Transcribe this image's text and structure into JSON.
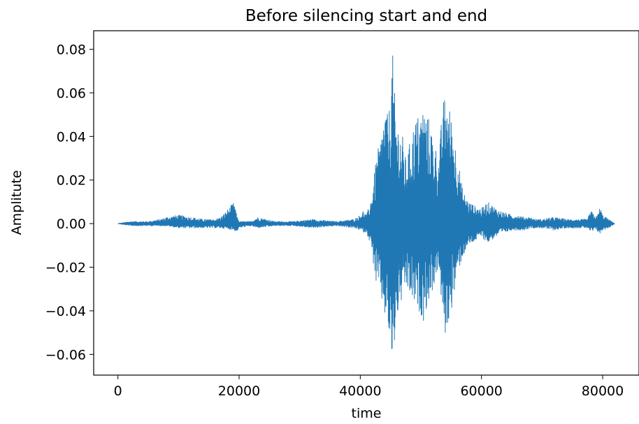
{
  "chart_data": {
    "type": "line",
    "title": "Before silencing start and end",
    "xlabel": "time",
    "ylabel": "Amplitute",
    "xlim": [
      -4000,
      86000
    ],
    "ylim": [
      -0.0695,
      0.0885
    ],
    "x_ticks": [
      0,
      20000,
      40000,
      60000,
      80000
    ],
    "x_tick_labels": [
      "0",
      "20000",
      "40000",
      "60000",
      "80000"
    ],
    "y_ticks": [
      -0.06,
      -0.04,
      -0.02,
      0.0,
      0.02,
      0.04,
      0.06,
      0.08
    ],
    "y_tick_labels": [
      "−0.06",
      "−0.04",
      "−0.02",
      "0.00",
      "0.02",
      "0.04",
      "0.06",
      "0.08"
    ],
    "grid": false,
    "legend": "none",
    "series": [
      {
        "color": "#1f77b4",
        "envelope": {
          "x": [
            0,
            2000,
            5000,
            7000,
            8000,
            10000,
            12000,
            14000,
            16000,
            17000,
            19200,
            19600,
            20000,
            22000,
            23000,
            26000,
            29000,
            32000,
            36000,
            39000,
            40000,
            40500,
            41000,
            41500,
            42000,
            42600,
            43000,
            43400,
            43800,
            44200,
            44600,
            45000,
            45300,
            45600,
            46000,
            46400,
            47000,
            47500,
            48000,
            48500,
            49000,
            49500,
            50000,
            50500,
            51000,
            51500,
            52000,
            52500,
            53000,
            53400,
            53800,
            54200,
            54600,
            55000,
            55400,
            55800,
            56200,
            56600,
            57000,
            57500,
            58000,
            59000,
            60000,
            61000,
            62000,
            63000,
            64000,
            65000,
            66000,
            67000,
            68000,
            69000,
            70000,
            72000,
            74000,
            76000,
            77500,
            78000,
            79000,
            79600,
            80000,
            81000,
            82000
          ],
          "upper": [
            0.0,
            0.001,
            0.001,
            0.002,
            0.003,
            0.004,
            0.003,
            0.002,
            0.002,
            0.003,
            0.01,
            0.004,
            0.001,
            0.001,
            0.003,
            0.001,
            0.001,
            0.002,
            0.001,
            0.002,
            0.004,
            0.006,
            0.004,
            0.008,
            0.015,
            0.03,
            0.035,
            0.04,
            0.05,
            0.055,
            0.048,
            0.06,
            0.081,
            0.062,
            0.05,
            0.045,
            0.04,
            0.03,
            0.035,
            0.042,
            0.048,
            0.05,
            0.052,
            0.055,
            0.05,
            0.048,
            0.04,
            0.035,
            0.03,
            0.048,
            0.058,
            0.06,
            0.055,
            0.05,
            0.044,
            0.035,
            0.03,
            0.02,
            0.015,
            0.012,
            0.01,
            0.008,
            0.007,
            0.01,
            0.008,
            0.006,
            0.005,
            0.004,
            0.004,
            0.003,
            0.003,
            0.002,
            0.002,
            0.003,
            0.002,
            0.002,
            0.002,
            0.006,
            0.003,
            0.008,
            0.004,
            0.002,
            0.0
          ],
          "lower": [
            0.0,
            -0.001,
            -0.001,
            -0.001,
            -0.001,
            -0.002,
            -0.002,
            -0.002,
            -0.002,
            -0.002,
            -0.003,
            -0.004,
            -0.002,
            -0.001,
            -0.002,
            -0.001,
            -0.001,
            -0.002,
            -0.001,
            -0.002,
            -0.003,
            -0.004,
            -0.004,
            -0.008,
            -0.015,
            -0.028,
            -0.03,
            -0.035,
            -0.04,
            -0.045,
            -0.05,
            -0.06,
            -0.068,
            -0.058,
            -0.045,
            -0.04,
            -0.035,
            -0.03,
            -0.032,
            -0.036,
            -0.038,
            -0.04,
            -0.042,
            -0.045,
            -0.038,
            -0.035,
            -0.03,
            -0.025,
            -0.02,
            -0.04,
            -0.05,
            -0.053,
            -0.045,
            -0.04,
            -0.035,
            -0.028,
            -0.022,
            -0.018,
            -0.015,
            -0.012,
            -0.01,
            -0.008,
            -0.006,
            -0.009,
            -0.007,
            -0.005,
            -0.004,
            -0.003,
            -0.003,
            -0.003,
            -0.002,
            -0.002,
            -0.002,
            -0.003,
            -0.002,
            -0.002,
            -0.002,
            -0.004,
            -0.003,
            -0.005,
            -0.003,
            -0.002,
            0.0
          ]
        }
      }
    ]
  }
}
